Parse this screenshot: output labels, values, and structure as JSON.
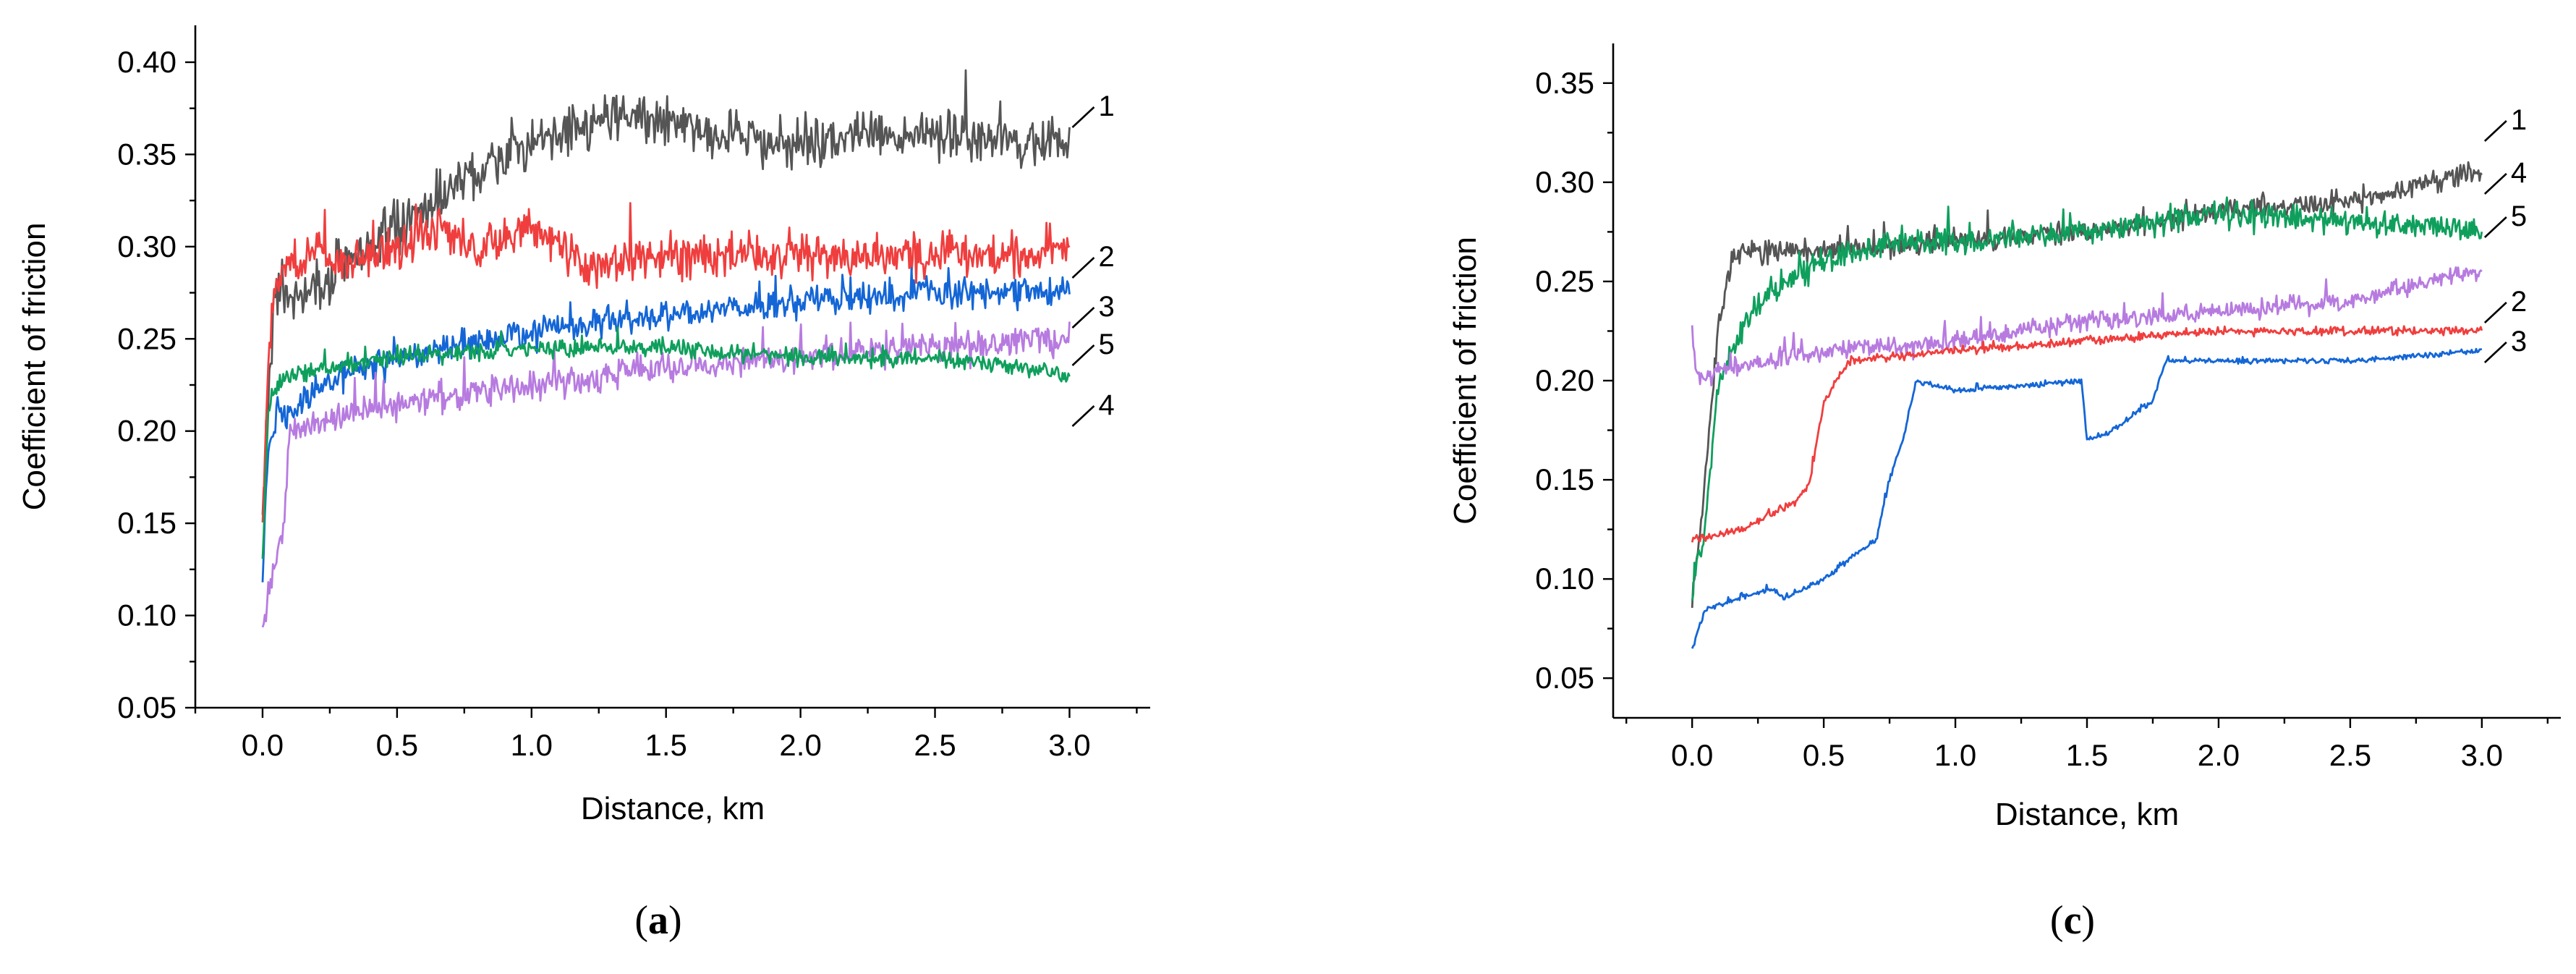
{
  "chart_data": [
    {
      "type": "line",
      "panel": "a",
      "caption": {
        "open": "(",
        "letter": "a",
        "close": ")"
      },
      "xlabel": "Distance, km",
      "ylabel": "Coefficient of friction",
      "xlim": [
        -0.25,
        3.3
      ],
      "ylim": [
        0.05,
        0.42
      ],
      "xticks": [
        "0.0",
        "0.5",
        "1.0",
        "1.5",
        "2.0",
        "2.5",
        "3.0"
      ],
      "yticks": [
        "0.05",
        "0.10",
        "0.15",
        "0.20",
        "0.25",
        "0.30",
        "0.35",
        "0.40"
      ],
      "series": [
        {
          "name": "1",
          "color": "#555555",
          "noise": 0.02,
          "x": [
            0,
            0.02,
            0.05,
            0.1,
            0.2,
            0.3,
            0.5,
            0.7,
            0.9,
            1.1,
            1.3,
            1.5,
            1.7,
            2.0,
            2.3,
            2.6,
            2.8,
            3.0
          ],
          "y": [
            0.15,
            0.22,
            0.28,
            0.27,
            0.28,
            0.29,
            0.31,
            0.33,
            0.35,
            0.36,
            0.37,
            0.37,
            0.36,
            0.355,
            0.36,
            0.36,
            0.355,
            0.36
          ]
        },
        {
          "name": "2",
          "color": "#f03e3e",
          "noise": 0.017,
          "x": [
            0,
            0.02,
            0.05,
            0.1,
            0.2,
            0.3,
            0.5,
            0.6,
            0.8,
            1.0,
            1.2,
            1.5,
            2.0,
            2.5,
            3.0
          ],
          "y": [
            0.15,
            0.24,
            0.28,
            0.29,
            0.3,
            0.29,
            0.3,
            0.31,
            0.3,
            0.31,
            0.29,
            0.295,
            0.295,
            0.295,
            0.3
          ]
        },
        {
          "name": "3",
          "color": "#1466d6",
          "noise": 0.012,
          "x": [
            0,
            0.02,
            0.05,
            0.1,
            0.2,
            0.3,
            0.5,
            0.7,
            1.0,
            1.3,
            1.6,
            2.0,
            2.5,
            3.0
          ],
          "y": [
            0.12,
            0.19,
            0.21,
            0.21,
            0.22,
            0.23,
            0.24,
            0.245,
            0.255,
            0.26,
            0.265,
            0.27,
            0.275,
            0.275
          ]
        },
        {
          "name": "5",
          "color": "#b77be0",
          "noise": 0.012,
          "x": [
            0,
            0.02,
            0.05,
            0.08,
            0.1,
            0.2,
            0.5,
            1.0,
            1.5,
            2.0,
            2.5,
            3.0
          ],
          "y": [
            0.09,
            0.11,
            0.13,
            0.15,
            0.2,
            0.205,
            0.215,
            0.225,
            0.235,
            0.24,
            0.245,
            0.25
          ]
        },
        {
          "name": "4",
          "color": "#0f9f5c",
          "noise": 0.007,
          "x": [
            0,
            0.02,
            0.05,
            0.1,
            0.3,
            0.5,
            1.0,
            1.5,
            2.0,
            2.5,
            2.8,
            3.0
          ],
          "y": [
            0.13,
            0.21,
            0.225,
            0.23,
            0.235,
            0.24,
            0.245,
            0.245,
            0.24,
            0.24,
            0.235,
            0.23
          ]
        }
      ]
    },
    {
      "type": "line",
      "panel": "c",
      "caption": {
        "open": "(",
        "letter": "c",
        "close": ")"
      },
      "xlabel": "Distance, km",
      "ylabel": "Coefficient of friction",
      "xlim": [
        -0.3,
        3.3
      ],
      "ylim": [
        0.03,
        0.37
      ],
      "xticks": [
        "0.0",
        "0.5",
        "1.0",
        "1.5",
        "2.0",
        "2.5",
        "3.0"
      ],
      "yticks": [
        "0.05",
        "0.10",
        "0.15",
        "0.20",
        "0.25",
        "0.30",
        "0.35"
      ],
      "series": [
        {
          "name": "1",
          "color": "#555555",
          "noise": 0.008,
          "x": [
            0,
            0.05,
            0.1,
            0.15,
            0.2,
            0.5,
            1.0,
            1.5,
            2.0,
            2.5,
            2.8,
            3.0
          ],
          "y": [
            0.09,
            0.15,
            0.23,
            0.26,
            0.265,
            0.265,
            0.27,
            0.275,
            0.285,
            0.29,
            0.3,
            0.305
          ]
        },
        {
          "name": "4",
          "color": "#0f9f5c",
          "noise": 0.01,
          "x": [
            0,
            0.05,
            0.1,
            0.2,
            0.3,
            0.5,
            0.8,
            1.0,
            1.5,
            2.0,
            2.5,
            3.0
          ],
          "y": [
            0.09,
            0.13,
            0.2,
            0.23,
            0.245,
            0.26,
            0.27,
            0.27,
            0.275,
            0.285,
            0.28,
            0.275
          ]
        },
        {
          "name": "5",
          "color": "#b77be0",
          "noise": 0.007,
          "x": [
            0,
            0.01,
            0.03,
            0.1,
            0.3,
            0.5,
            1.0,
            1.5,
            2.0,
            2.5,
            2.8,
            3.0
          ],
          "y": [
            0.23,
            0.21,
            0.2,
            0.205,
            0.21,
            0.215,
            0.22,
            0.23,
            0.235,
            0.24,
            0.25,
            0.255
          ]
        },
        {
          "name": "2",
          "color": "#f03e3e",
          "noise": 0.003,
          "x": [
            0,
            0.2,
            0.4,
            0.45,
            0.5,
            0.55,
            0.6,
            1.0,
            1.5,
            2.0,
            2.5,
            3.0
          ],
          "y": [
            0.12,
            0.125,
            0.14,
            0.15,
            0.19,
            0.2,
            0.21,
            0.215,
            0.22,
            0.225,
            0.225,
            0.225
          ]
        },
        {
          "name": "3",
          "color": "#1466d6",
          "noise": 0.002,
          "x": [
            0,
            0.05,
            0.3,
            0.35,
            0.5,
            0.7,
            0.75,
            0.8,
            0.85,
            1.0,
            1.48,
            1.5,
            1.6,
            1.7,
            1.75,
            1.8,
            2.5,
            3.0
          ],
          "y": [
            0.065,
            0.085,
            0.095,
            0.09,
            0.1,
            0.12,
            0.15,
            0.17,
            0.2,
            0.195,
            0.2,
            0.17,
            0.175,
            0.185,
            0.19,
            0.21,
            0.21,
            0.215
          ]
        }
      ]
    }
  ]
}
